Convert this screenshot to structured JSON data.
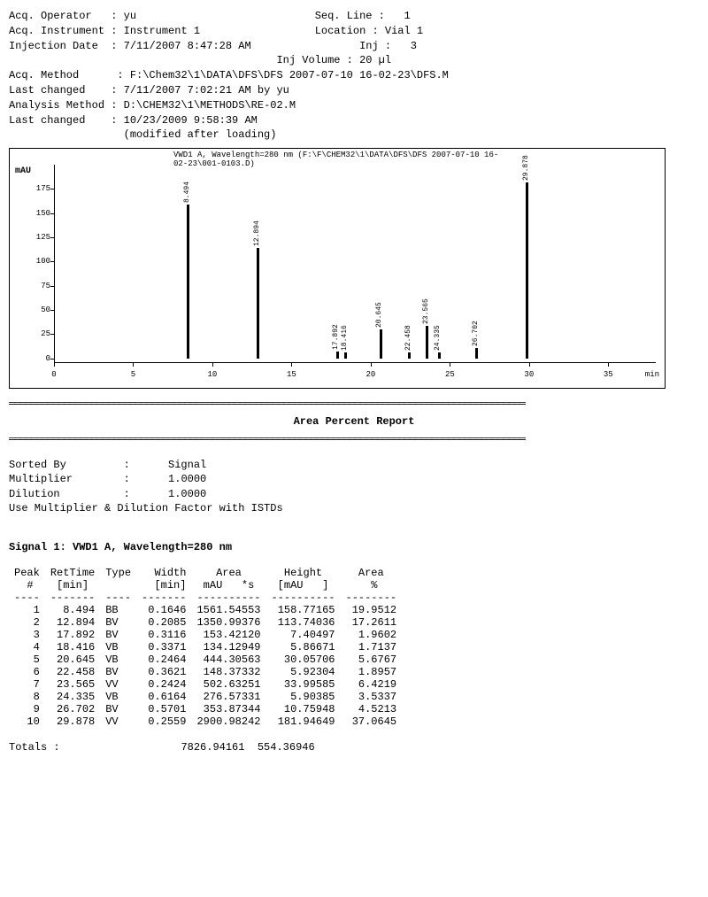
{
  "header": {
    "acq_operator_label": "Acq. Operator",
    "acq_operator": "yu",
    "seq_line_label": "Seq. Line",
    "seq_line": "1",
    "acq_instrument_label": "Acq. Instrument",
    "acq_instrument": "Instrument 1",
    "location_label": "Location",
    "location": "Vial 1",
    "injection_date_label": "Injection Date",
    "injection_date": "7/11/2007 8:47:28 AM",
    "inj_label": "Inj",
    "inj": "3",
    "inj_volume_label": "Inj Volume",
    "inj_volume": "20 µl",
    "acq_method_label": "Acq. Method",
    "acq_method": "F:\\Chem32\\1\\DATA\\DFS\\DFS 2007-07-10 16-02-23\\DFS.M",
    "last_changed1_label": "Last changed",
    "last_changed1": "7/11/2007 7:02:21 AM by yu",
    "analysis_method_label": "Analysis Method",
    "analysis_method": "D:\\CHEM32\\1\\METHODS\\RE-02.M",
    "last_changed2_label": "Last changed",
    "last_changed2": "10/23/2009 9:58:39 AM",
    "modified": "(modified after loading)"
  },
  "chart": {
    "title": "VWD1 A, Wavelength=280 nm (F:\\F\\CHEM32\\1\\DATA\\DFS\\DFS 2007-07-10 16-02-23\\001-0103.D)",
    "y_label": "mAU",
    "x_unit": "min",
    "xlim": [
      0,
      38
    ],
    "ylim": [
      -5,
      200
    ],
    "yticks": [
      0,
      25,
      50,
      75,
      100,
      125,
      150,
      175
    ],
    "xticks": [
      0,
      5,
      10,
      15,
      20,
      25,
      30,
      35
    ],
    "peak_color": "#000000",
    "background_color": "#ffffff",
    "peaks": [
      {
        "rt": 8.494,
        "h": 158.77,
        "label": "8.494"
      },
      {
        "rt": 12.894,
        "h": 113.74,
        "label": "12.894"
      },
      {
        "rt": 17.892,
        "h": 7.4,
        "label": "17.892"
      },
      {
        "rt": 18.416,
        "h": 5.87,
        "label": "18.416"
      },
      {
        "rt": 20.645,
        "h": 30.06,
        "label": "20.645"
      },
      {
        "rt": 22.458,
        "h": 5.92,
        "label": "22.458"
      },
      {
        "rt": 23.565,
        "h": 33.99,
        "label": "23.565"
      },
      {
        "rt": 24.335,
        "h": 5.9,
        "label": "24.335"
      },
      {
        "rt": 26.702,
        "h": 10.76,
        "label": "26.702"
      },
      {
        "rt": 29.878,
        "h": 181.95,
        "label": "29.878"
      }
    ]
  },
  "report": {
    "title": "Area Percent Report",
    "sorted_by_label": "Sorted By",
    "sorted_by": "Signal",
    "multiplier_label": "Multiplier",
    "multiplier": "1.0000",
    "dilution_label": "Dilution",
    "dilution": "1.0000",
    "note": "Use Multiplier & Dilution Factor with ISTDs",
    "signal_line": "Signal 1: VWD1 A, Wavelength=280 nm",
    "columns": {
      "peak": "Peak\n #",
      "rettime": "RetTime\n [min]",
      "type": "Type\n ",
      "width": "Width\n[min]",
      "area": "Area\nmAU  *s",
      "height": "Height\n[mAU  ]",
      "areapct": "Area\n  %"
    },
    "rows": [
      {
        "n": "1",
        "rt": "8.494",
        "type": "BB",
        "w": "0.1646",
        "area": "1561.54553",
        "h": "158.77165",
        "pct": "19.9512"
      },
      {
        "n": "2",
        "rt": "12.894",
        "type": "BV",
        "w": "0.2085",
        "area": "1350.99376",
        "h": "113.74036",
        "pct": "17.2611"
      },
      {
        "n": "3",
        "rt": "17.892",
        "type": "BV",
        "w": "0.3116",
        "area": "153.42120",
        "h": "7.40497",
        "pct": "1.9602"
      },
      {
        "n": "4",
        "rt": "18.416",
        "type": "VB",
        "w": "0.3371",
        "area": "134.12949",
        "h": "5.86671",
        "pct": "1.7137"
      },
      {
        "n": "5",
        "rt": "20.645",
        "type": "VB",
        "w": "0.2464",
        "area": "444.30563",
        "h": "30.05706",
        "pct": "5.6767"
      },
      {
        "n": "6",
        "rt": "22.458",
        "type": "BV",
        "w": "0.3621",
        "area": "148.37332",
        "h": "5.92304",
        "pct": "1.8957"
      },
      {
        "n": "7",
        "rt": "23.565",
        "type": "VV",
        "w": "0.2424",
        "area": "502.63251",
        "h": "33.99585",
        "pct": "6.4219"
      },
      {
        "n": "8",
        "rt": "24.335",
        "type": "VB",
        "w": "0.6164",
        "area": "276.57331",
        "h": "5.90385",
        "pct": "3.5337"
      },
      {
        "n": "9",
        "rt": "26.702",
        "type": "BV",
        "w": "0.5701",
        "area": "353.87344",
        "h": "10.75948",
        "pct": "4.5213"
      },
      {
        "n": "10",
        "rt": "29.878",
        "type": "VV",
        "w": "0.2559",
        "area": "2900.98242",
        "h": "181.94649",
        "pct": "37.0645"
      }
    ],
    "totals_label": "Totals :",
    "totals_area": "7826.94161",
    "totals_height": "554.36946"
  }
}
